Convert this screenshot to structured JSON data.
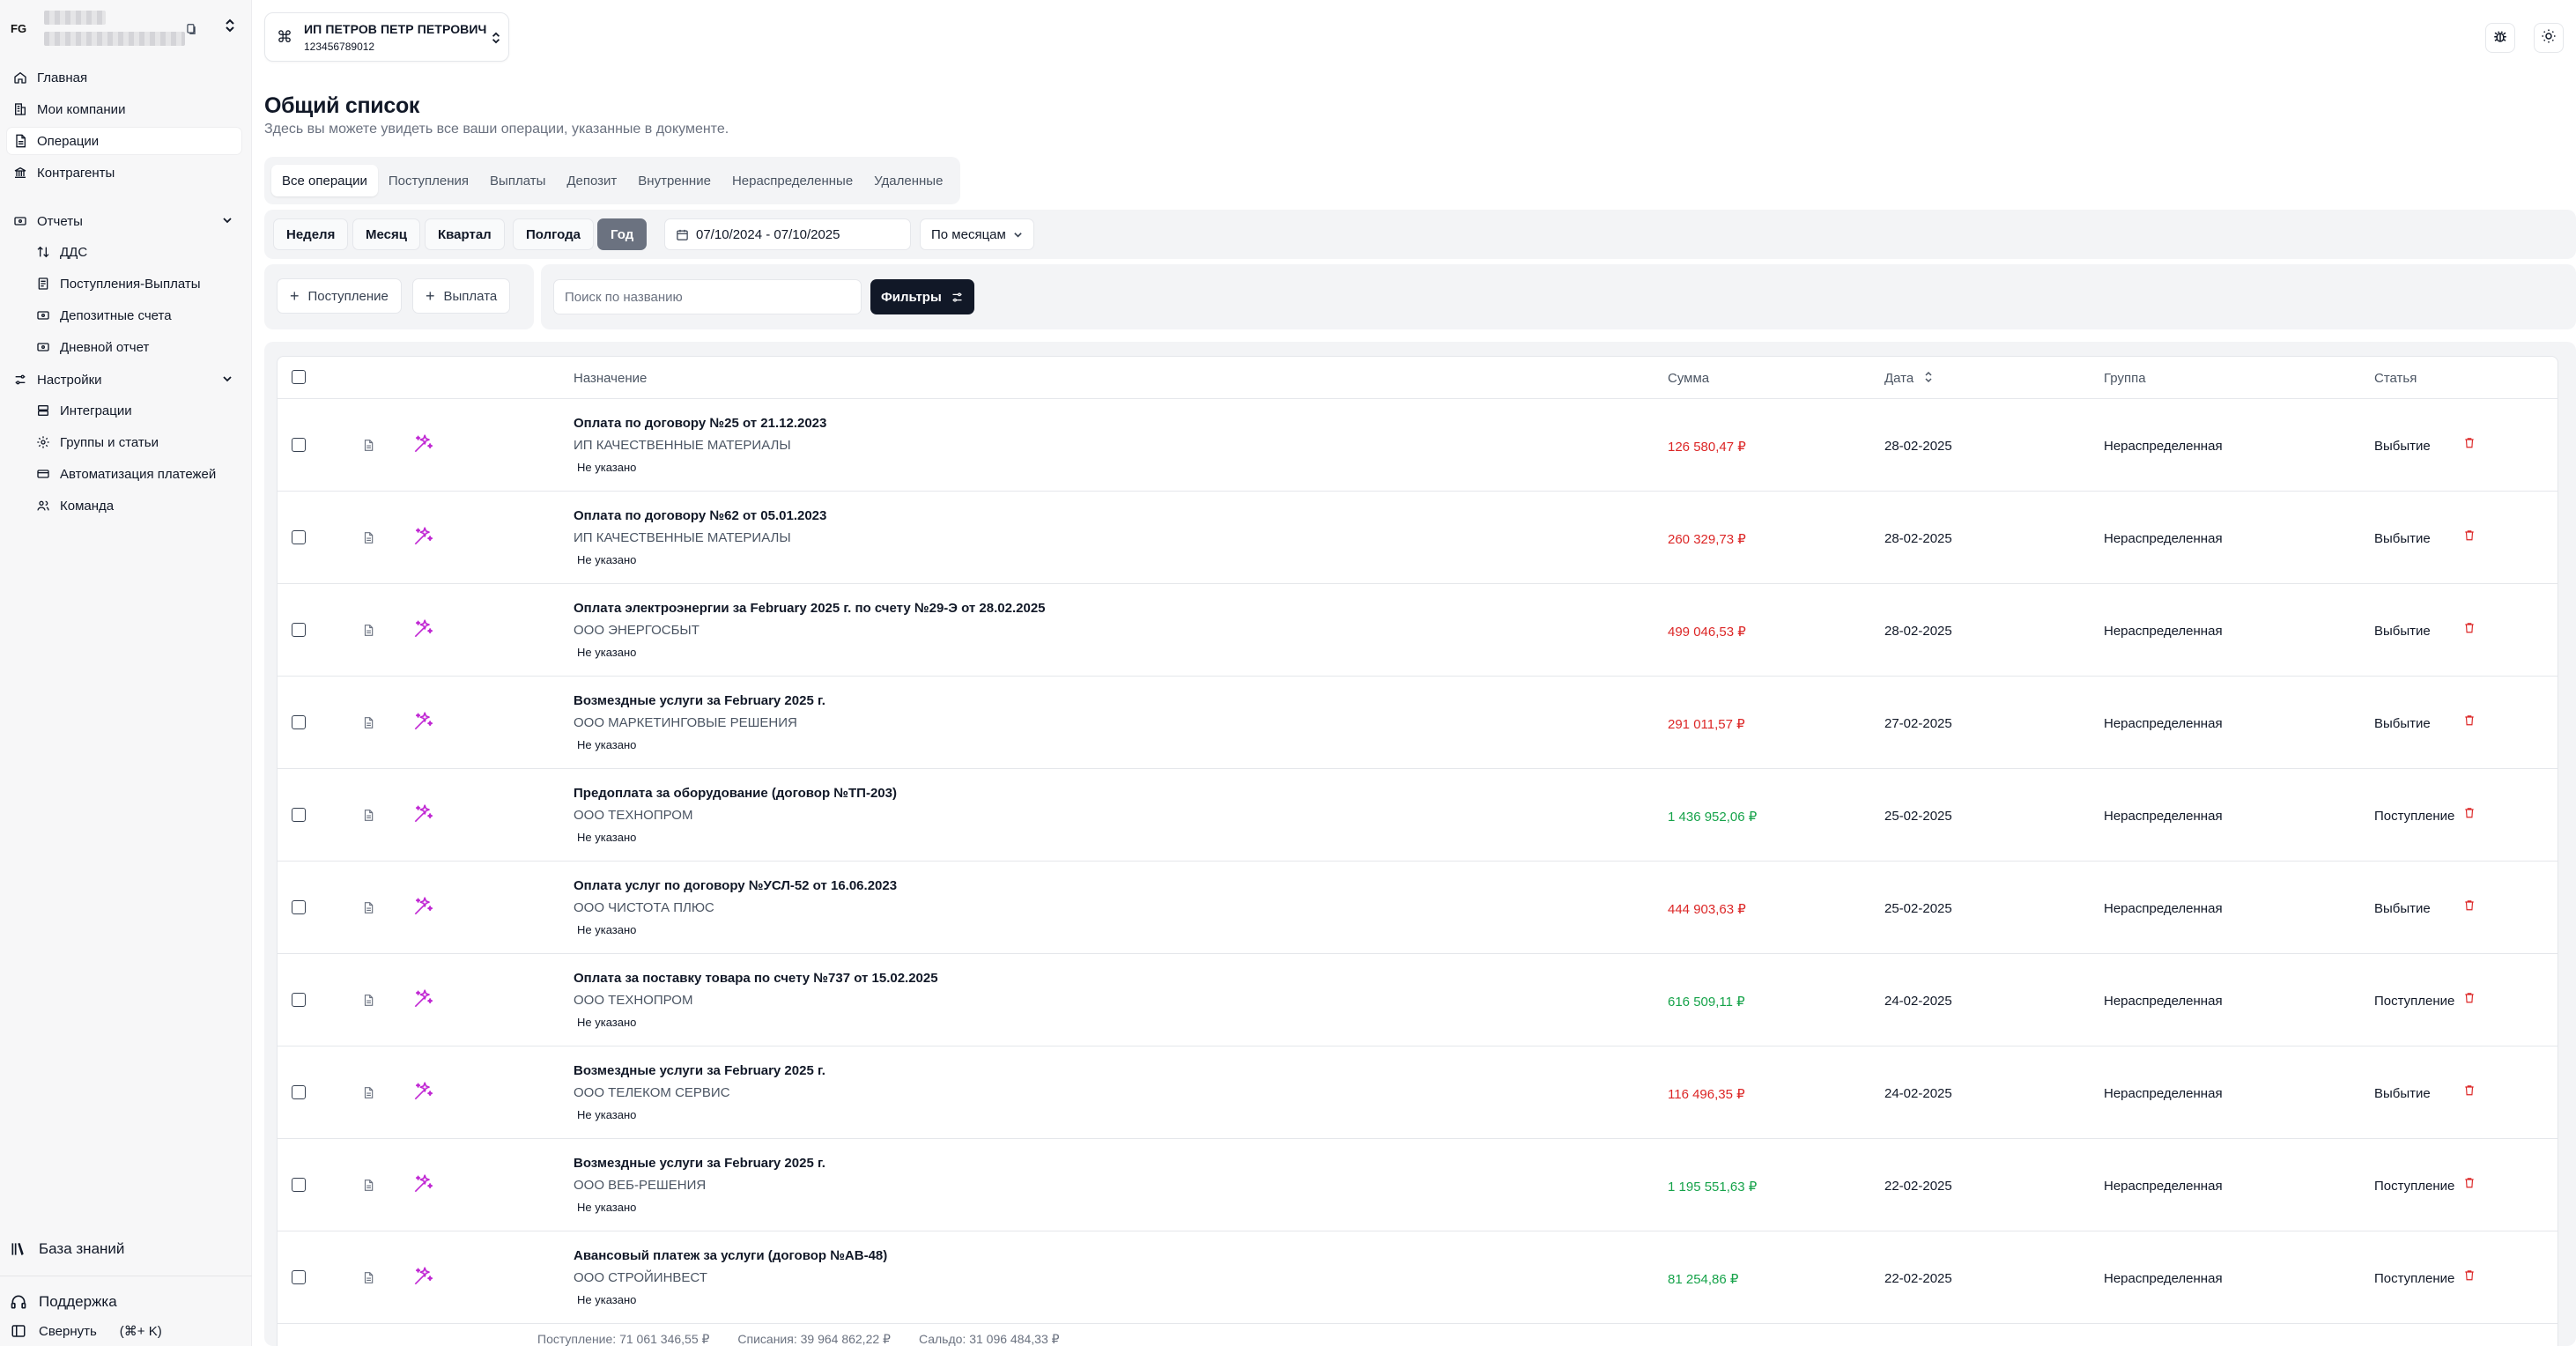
{
  "user": {
    "initials": "FG"
  },
  "sidebar": {
    "items": [
      {
        "label": "Главная",
        "icon": "home-icon"
      },
      {
        "label": "Мои компании",
        "icon": "building-icon"
      },
      {
        "label": "Операции",
        "icon": "document-icon",
        "active": true
      },
      {
        "label": "Контрагенты",
        "icon": "bank-icon"
      }
    ],
    "reports": {
      "label": "Отчеты",
      "items": [
        {
          "label": "ДДС",
          "icon": "arrows-updown-icon"
        },
        {
          "label": "Поступления-Выплаты",
          "icon": "document-icon"
        },
        {
          "label": "Депозитные счета",
          "icon": "card-icon"
        },
        {
          "label": "Дневной отчет",
          "icon": "card-icon"
        }
      ]
    },
    "settings": {
      "label": "Настройки",
      "items": [
        {
          "label": "Интеграции",
          "icon": "database-icon"
        },
        {
          "label": "Группы и статьи",
          "icon": "gear-icon"
        },
        {
          "label": "Автоматизация платежей",
          "icon": "card-icon"
        },
        {
          "label": "Команда",
          "icon": "users-icon"
        }
      ]
    },
    "knowledge_base": "База знаний",
    "support": "Поддержка",
    "collapse": "Свернуть",
    "collapse_shortcut": "(⌘+ K)"
  },
  "company": {
    "name": "ИП ПЕТРОВ ПЕТР ПЕТРОВИЧ",
    "inn": "123456789012"
  },
  "page": {
    "title": "Общий список",
    "subtitle": "Здесь вы можете увидеть все ваши операции, указанные в документе."
  },
  "tabs": [
    "Все операции",
    "Поступления",
    "Выплаты",
    "Депозит",
    "Внутренние",
    "Нераспределенные",
    "Удаленные"
  ],
  "active_tab": "Все операции",
  "periods": [
    "Неделя",
    "Месяц",
    "Квартал",
    "Полгода",
    "Год"
  ],
  "active_period": "Год",
  "date_range": "07/10/2024 - 07/10/2025",
  "grouping": "По месяцам",
  "actions": {
    "add_income": "Поступление",
    "add_payment": "Выплата"
  },
  "search": {
    "placeholder": "Поиск по названию",
    "value": ""
  },
  "filters_label": "Фильтры",
  "table": {
    "headers": {
      "purpose": "Назначение",
      "sum": "Сумма",
      "date": "Дата",
      "group": "Группа",
      "article": "Статья"
    },
    "rows": [
      {
        "purpose": "Оплата по договору №25 от 21.12.2023",
        "counterparty": "ИП КАЧЕСТВЕННЫЕ МАТЕРИАЛЫ",
        "badge": "Не указано",
        "sum": "126 580,47 ₽",
        "direction": "out",
        "date": "28-02-2025",
        "group": "Нераспределенная",
        "article": "Выбытие"
      },
      {
        "purpose": "Оплата по договору №62 от 05.01.2023",
        "counterparty": "ИП КАЧЕСТВЕННЫЕ МАТЕРИАЛЫ",
        "badge": "Не указано",
        "sum": "260 329,73 ₽",
        "direction": "out",
        "date": "28-02-2025",
        "group": "Нераспределенная",
        "article": "Выбытие"
      },
      {
        "purpose": "Оплата электроэнергии за February 2025 г. по счету №29-Э от 28.02.2025",
        "counterparty": "ООО ЭНЕРГОСБЫТ",
        "badge": "Не указано",
        "sum": "499 046,53 ₽",
        "direction": "out",
        "date": "28-02-2025",
        "group": "Нераспределенная",
        "article": "Выбытие"
      },
      {
        "purpose": "Возмездные услуги за February 2025 г.",
        "counterparty": "ООО МАРКЕТИНГОВЫЕ РЕШЕНИЯ",
        "badge": "Не указано",
        "sum": "291 011,57 ₽",
        "direction": "out",
        "date": "27-02-2025",
        "group": "Нераспределенная",
        "article": "Выбытие"
      },
      {
        "purpose": "Предоплата за оборудование (договор №ТП-203)",
        "counterparty": "ООО ТЕХНОПРОМ",
        "badge": "Не указано",
        "sum": "1 436 952,06 ₽",
        "direction": "in",
        "date": "25-02-2025",
        "group": "Нераспределенная",
        "article": "Поступление"
      },
      {
        "purpose": "Оплата услуг по договору №УСЛ-52 от 16.06.2023",
        "counterparty": "ООО ЧИСТОТА ПЛЮС",
        "badge": "Не указано",
        "sum": "444 903,63 ₽",
        "direction": "out",
        "date": "25-02-2025",
        "group": "Нераспределенная",
        "article": "Выбытие"
      },
      {
        "purpose": "Оплата за поставку товара по счету №737 от 15.02.2025",
        "counterparty": "ООО ТЕХНОПРОМ",
        "badge": "Не указано",
        "sum": "616 509,11 ₽",
        "direction": "in",
        "date": "24-02-2025",
        "group": "Нераспределенная",
        "article": "Поступление"
      },
      {
        "purpose": "Возмездные услуги за February 2025 г.",
        "counterparty": "ООО ТЕЛЕКОМ СЕРВИС",
        "badge": "Не указано",
        "sum": "116 496,35 ₽",
        "direction": "out",
        "date": "24-02-2025",
        "group": "Нераспределенная",
        "article": "Выбытие"
      },
      {
        "purpose": "Возмездные услуги за February 2025 г.",
        "counterparty": "ООО ВЕБ-РЕШЕНИЯ",
        "badge": "Не указано",
        "sum": "1 195 551,63 ₽",
        "direction": "in",
        "date": "22-02-2025",
        "group": "Нераспределенная",
        "article": "Поступление"
      },
      {
        "purpose": "Авансовый платеж за услуги (договор №АВ-48)",
        "counterparty": "ООО СТРОЙИНВЕСТ",
        "badge": "Не указано",
        "sum": "81 254,86 ₽",
        "direction": "in",
        "date": "22-02-2025",
        "group": "Нераспределенная",
        "article": "Поступление"
      }
    ]
  },
  "totals": {
    "income": "Поступление:  71 061 346,55 ₽",
    "expense": "Списания:  39 964 862,22 ₽",
    "balance": "Сальдо:  31 096 484,33 ₽"
  },
  "colors": {
    "income": "#16a34a",
    "expense": "#dc2626",
    "accent": "#c026d3",
    "dark": "#111827"
  }
}
